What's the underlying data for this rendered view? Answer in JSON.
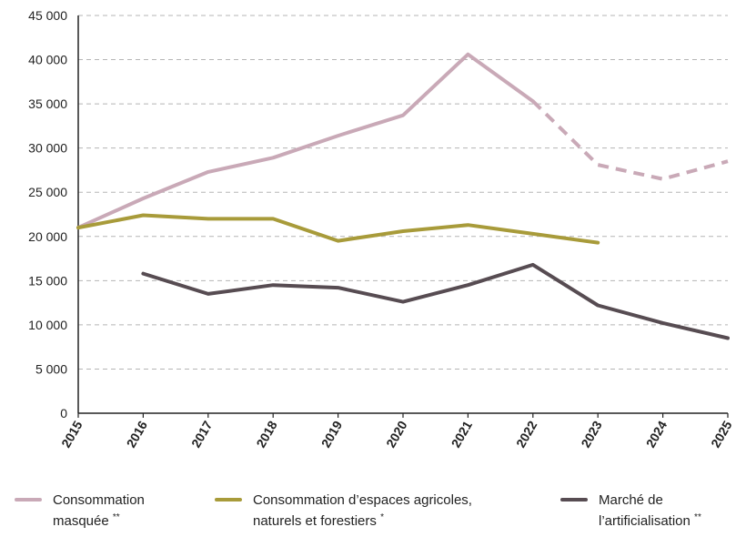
{
  "chart_data": {
    "type": "line",
    "x": [
      "2015",
      "2016",
      "2017",
      "2018",
      "2019",
      "2020",
      "2021",
      "2022",
      "2023",
      "2024",
      "2025"
    ],
    "ylim": [
      0,
      45000
    ],
    "yticks": [
      0,
      5000,
      10000,
      15000,
      20000,
      25000,
      30000,
      35000,
      40000,
      45000
    ],
    "ytick_labels": [
      "0",
      "5 000",
      "10 000",
      "15 000",
      "20 000",
      "25 000",
      "30 000",
      "35 000",
      "40 000",
      "45 000"
    ],
    "grid": true,
    "legend_position": "bottom",
    "series": [
      {
        "name": "Consommation masquée",
        "name_line1": "Consommation",
        "name_line2": "masquée",
        "marker": "**",
        "color": "#c9a9b7",
        "values": [
          21000,
          24300,
          27300,
          28900,
          31400,
          33700,
          40600,
          35300,
          28100,
          26500,
          28500
        ],
        "dashed_from_index": 7
      },
      {
        "name": "Consommation d'espaces agricoles, naturels et forestiers",
        "name_line1": "Consommation d’espaces agricoles,",
        "name_line2": "naturels et forestiers",
        "marker": "*",
        "color": "#a89b3a",
        "values": [
          21000,
          22400,
          22000,
          22000,
          19500,
          20600,
          21300,
          20300,
          19300,
          null,
          null
        ]
      },
      {
        "name": "Marché de l'artificialisation",
        "name_line1": "Marché de",
        "name_line2": "l’artificialisation",
        "marker": "**",
        "color": "#574c52",
        "values": [
          null,
          15800,
          13500,
          14500,
          14200,
          12600,
          14500,
          16800,
          12200,
          10200,
          8500
        ]
      }
    ]
  }
}
